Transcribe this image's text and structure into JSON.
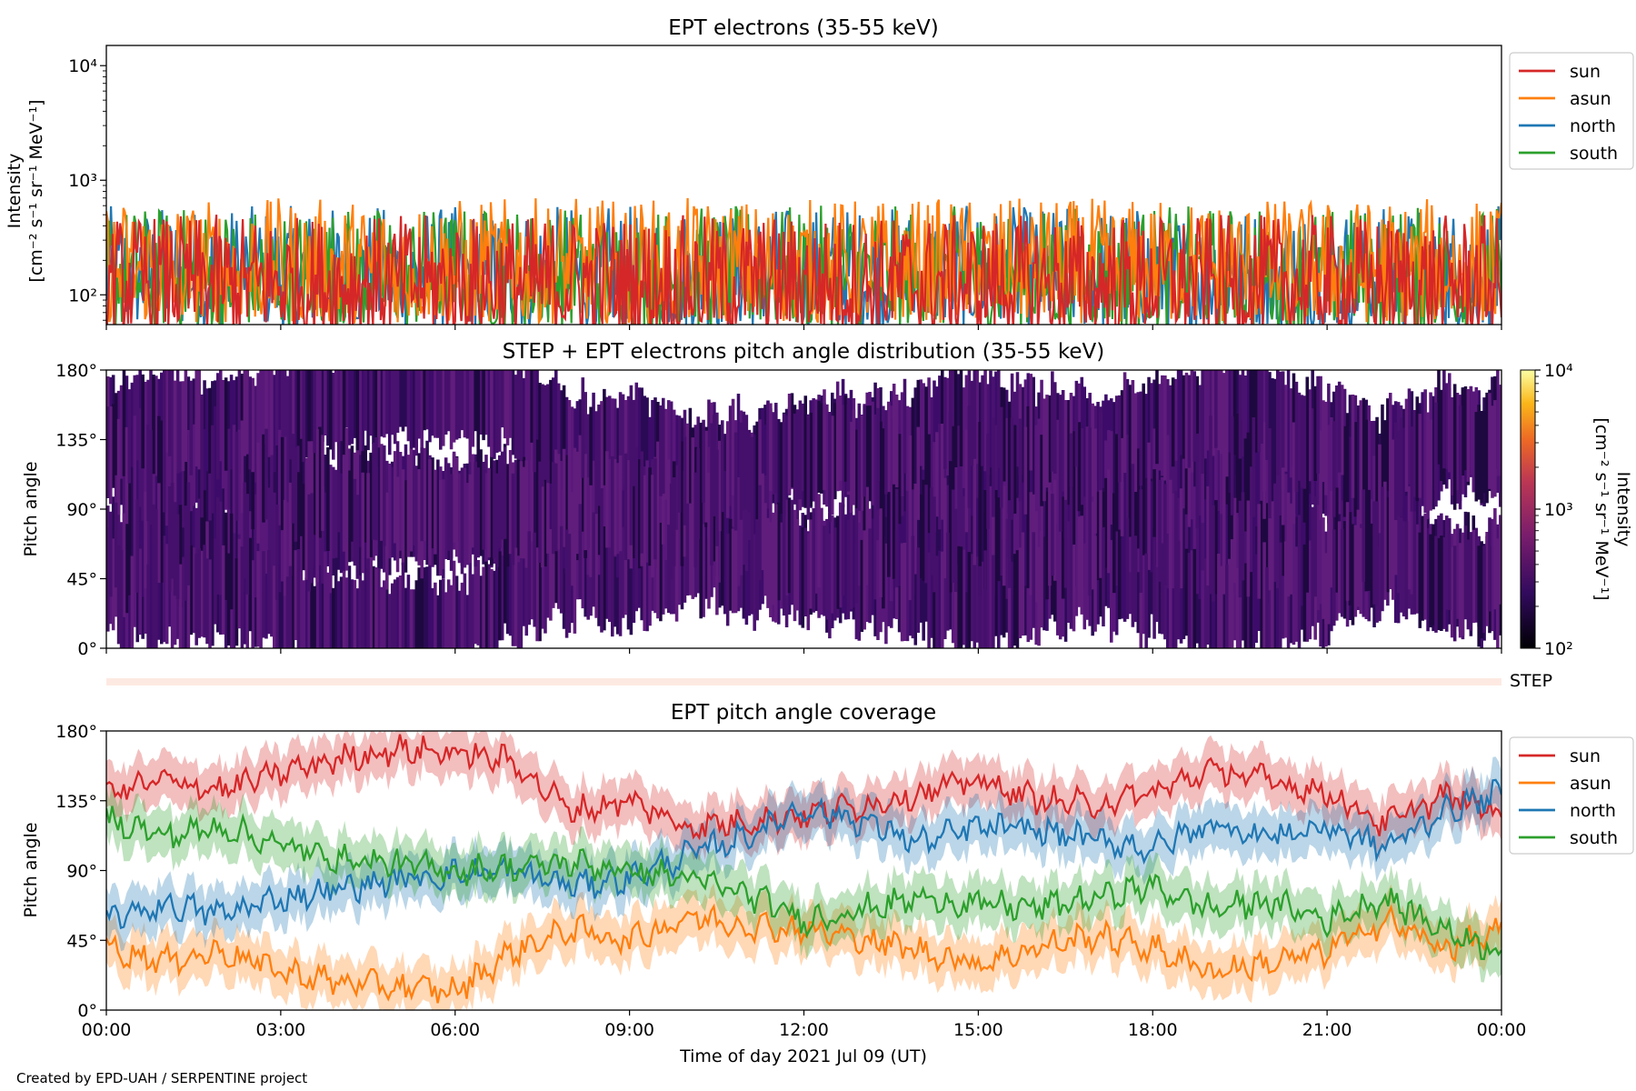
{
  "colors": {
    "sun": "#d62728",
    "asun": "#ff7f0e",
    "north": "#1f77b4",
    "south": "#2ca02c"
  },
  "credit": "Created by EPD-UAH / SERPENTINE project",
  "xaxis": {
    "label": "Time of day 2021 Jul 09 (UT)",
    "ticks": [
      "00:00",
      "03:00",
      "06:00",
      "09:00",
      "12:00",
      "15:00",
      "18:00",
      "21:00",
      "00:00"
    ],
    "range_hours": [
      0,
      24
    ]
  },
  "chart_data": [
    {
      "type": "line",
      "title": "EPT electrons (35-55 keV)",
      "ylabel": "Intensity",
      "ylabel_unit": "[cm⁻² s⁻¹ sr⁻¹ MeV⁻¹]",
      "yscale": "log",
      "ylim": [
        55,
        15000
      ],
      "ytick_labels": [
        "10²",
        "10³",
        "10⁴"
      ],
      "legend": "outside-right-top",
      "series": [
        {
          "name": "sun",
          "typical_range": [
            80,
            500
          ]
        },
        {
          "name": "asun",
          "typical_range": [
            100,
            700
          ]
        },
        {
          "name": "north",
          "typical_range": [
            90,
            600
          ]
        },
        {
          "name": "south",
          "typical_range": [
            90,
            600
          ]
        }
      ]
    },
    {
      "type": "heatmap",
      "title": "STEP + EPT electrons pitch angle distribution (35-55 keV)",
      "ylabel": "Pitch angle",
      "ylim": [
        0,
        180
      ],
      "ytick_labels": [
        "0°",
        "45°",
        "90°",
        "135°",
        "180°"
      ],
      "colorbar": {
        "label": "Intensity",
        "unit": "[cm⁻² s⁻¹ sr⁻¹ MeV⁻¹]",
        "scale": "log",
        "range": [
          100,
          10000
        ],
        "tick_labels": [
          "10²",
          "10³",
          "10⁴"
        ],
        "colormap": "inferno"
      },
      "strip_label": "STEP"
    },
    {
      "type": "line",
      "title": "EPT pitch angle coverage",
      "ylabel": "Pitch angle",
      "ylim": [
        0,
        180
      ],
      "ytick_labels": [
        "0°",
        "45°",
        "90°",
        "135°",
        "180°"
      ],
      "legend": "outside-right-top",
      "series": [
        {
          "name": "sun",
          "x": [
            0,
            1,
            2,
            3,
            4,
            5,
            6,
            7,
            8,
            9,
            10,
            11,
            12,
            13,
            14,
            15,
            16,
            17,
            18,
            19,
            20,
            21,
            22,
            23,
            24
          ],
          "y": [
            140,
            148,
            142,
            153,
            162,
            168,
            166,
            160,
            128,
            135,
            118,
            122,
            126,
            132,
            140,
            148,
            136,
            132,
            140,
            155,
            148,
            140,
            120,
            138,
            128
          ]
        },
        {
          "name": "asun",
          "x": [
            0,
            1,
            2,
            3,
            4,
            5,
            6,
            7,
            8,
            9,
            10,
            11,
            12,
            13,
            14,
            15,
            16,
            17,
            18,
            19,
            20,
            21,
            22,
            23,
            24
          ],
          "y": [
            40,
            32,
            38,
            25,
            18,
            15,
            12,
            38,
            52,
            45,
            60,
            55,
            52,
            46,
            38,
            30,
            40,
            48,
            40,
            25,
            30,
            38,
            58,
            40,
            50
          ]
        },
        {
          "name": "north",
          "x": [
            0,
            1,
            2,
            3,
            4,
            5,
            6,
            7,
            8,
            9,
            10,
            11,
            12,
            13,
            14,
            15,
            16,
            17,
            18,
            19,
            20,
            21,
            22,
            23,
            24
          ],
          "y": [
            58,
            68,
            62,
            72,
            78,
            84,
            88,
            90,
            80,
            85,
            100,
            112,
            130,
            122,
            108,
            118,
            116,
            110,
            104,
            120,
            112,
            118,
            105,
            128,
            140
          ]
        },
        {
          "name": "south",
          "x": [
            0,
            1,
            2,
            3,
            4,
            5,
            6,
            7,
            8,
            9,
            10,
            11,
            12,
            13,
            14,
            15,
            16,
            17,
            18,
            19,
            20,
            21,
            22,
            23,
            24
          ],
          "y": [
            124,
            112,
            118,
            106,
            98,
            94,
            90,
            92,
            95,
            90,
            85,
            75,
            58,
            65,
            72,
            68,
            66,
            72,
            80,
            65,
            70,
            58,
            72,
            52,
            38
          ]
        }
      ]
    }
  ]
}
